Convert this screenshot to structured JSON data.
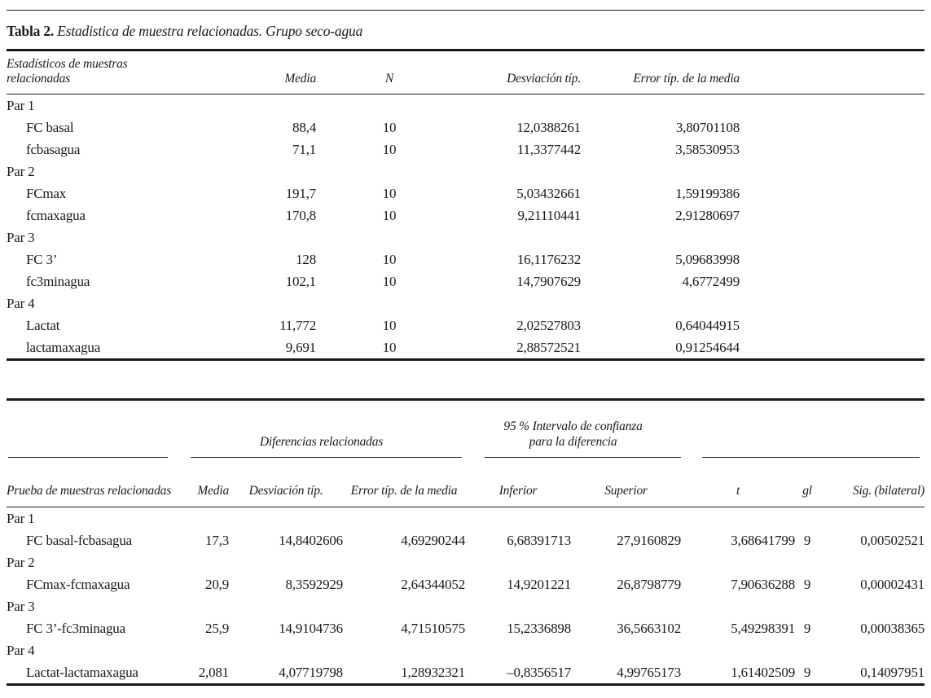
{
  "colors": {
    "background": "#ffffff",
    "text": "#1a1a1a",
    "rule": "#191919"
  },
  "title": {
    "label": "Tabla 2.",
    "caption": "Estadistica de muestra relacionadas. Grupo seco-agua"
  },
  "table1": {
    "headers": {
      "stub": "Estadísticos de muestras relacionadas",
      "media": "Media",
      "n": "N",
      "sd": "Desviación típ.",
      "sem": "Error típ. de la media"
    },
    "rows": [
      {
        "type": "group",
        "label": "Par 1"
      },
      {
        "type": "data",
        "label": "FC basal",
        "media": "88,4",
        "n": "10",
        "sd": "12,0388261",
        "sem": "3,80701108"
      },
      {
        "type": "data",
        "label": "fcbasagua",
        "media": "71,1",
        "n": "10",
        "sd": "11,3377442",
        "sem": "3,58530953"
      },
      {
        "type": "group",
        "label": "Par 2"
      },
      {
        "type": "data",
        "label": "FCmax",
        "media": "191,7",
        "n": "10",
        "sd": "5,03432661",
        "sem": "1,59199386"
      },
      {
        "type": "data",
        "label": "fcmaxagua",
        "media": "170,8",
        "n": "10",
        "sd": "9,21110441",
        "sem": "2,91280697"
      },
      {
        "type": "group",
        "label": "Par 3"
      },
      {
        "type": "data",
        "label": "FC 3’",
        "media": "128",
        "n": "10",
        "sd": "16,1176232",
        "sem": "5,09683998"
      },
      {
        "type": "data",
        "label": "fc3minagua",
        "media": "102,1",
        "n": "10",
        "sd": "14,7907629",
        "sem": "4,6772499"
      },
      {
        "type": "group",
        "label": "Par 4"
      },
      {
        "type": "data",
        "label": "Lactat",
        "media": "11,772",
        "n": "10",
        "sd": "2,02527803",
        "sem": "0,64044915"
      },
      {
        "type": "data",
        "label": "lactamaxagua",
        "media": "9,691",
        "n": "10",
        "sd": "2,88572521",
        "sem": "0,91254644"
      }
    ]
  },
  "table2": {
    "group_headers": {
      "diff": "Diferencias relacionadas",
      "ci_line1": "95 % Intervalo de confianza",
      "ci_line2": "para la diferencia"
    },
    "headers": {
      "stub": "Prueba de muestras relacionadas",
      "media": "Media",
      "sd": "Desviación típ.",
      "sem": "Error típ. de la media",
      "inferior": "Inferior",
      "superior": "Superior",
      "t": "t",
      "gl": "gl",
      "sig": "Sig. (bilateral)"
    },
    "rows": [
      {
        "type": "group",
        "label": "Par 1"
      },
      {
        "type": "data",
        "label": "FC basal-fcbasagua",
        "media": "17,3",
        "sd": "14,8402606",
        "sem": "4,69290244",
        "inferior": "6,68391713",
        "superior": "27,9160829",
        "t": "3,68641799",
        "gl": "9",
        "sig": "0,00502521"
      },
      {
        "type": "group",
        "label": "Par 2"
      },
      {
        "type": "data",
        "label": "FCmax-fcmaxagua",
        "media": "20,9",
        "sd": "8,3592929",
        "sem": "2,64344052",
        "inferior": "14,9201221",
        "superior": "26,8798779",
        "t": "7,90636288",
        "gl": "9",
        "sig": "0,00002431"
      },
      {
        "type": "group",
        "label": "Par 3"
      },
      {
        "type": "data",
        "label": "FC 3’-fc3minagua",
        "media": "25,9",
        "sd": "14,9104736",
        "sem": "4,71510575",
        "inferior": "15,2336898",
        "superior": "36,5663102",
        "t": "5,49298391",
        "gl": "9",
        "sig": "0,00038365"
      },
      {
        "type": "group",
        "label": "Par 4"
      },
      {
        "type": "data",
        "label": "Lactat-lactamaxagua",
        "media": "2,081",
        "sd": "4,07719798",
        "sem": "1,28932321",
        "inferior": "–0,8356517",
        "superior": "4,99765173",
        "t": "1,61402509",
        "gl": "9",
        "sig": "0,14097951"
      }
    ]
  }
}
